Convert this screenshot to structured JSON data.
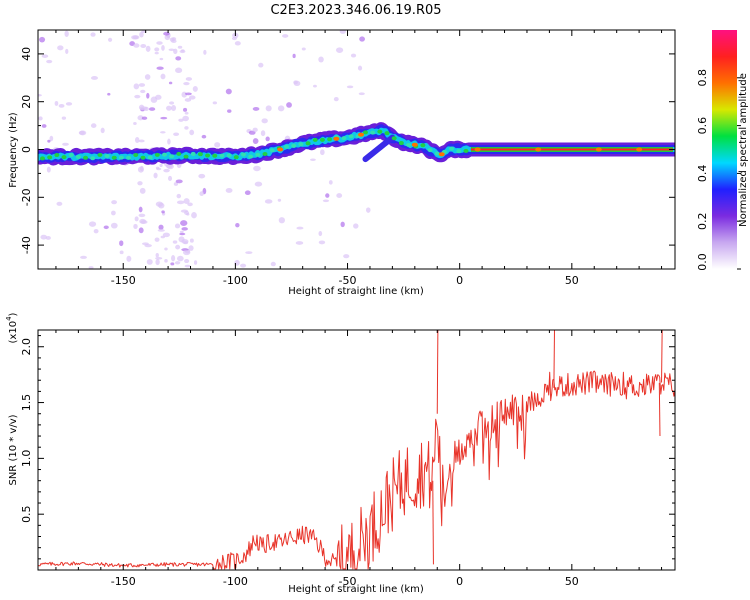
{
  "title": "C2E3.2023.346.06.19.R05",
  "chart_data": [
    {
      "type": "heatmap",
      "name": "spectrogram",
      "xlabel": "Height of straight line (km)",
      "ylabel": "Frequency (Hz)",
      "xlim": [
        -188,
        96
      ],
      "ylim": [
        -50,
        50
      ],
      "x_ticks": [
        -150,
        -100,
        -50,
        0,
        50
      ],
      "x_tick_labels": [
        "-150",
        "-100",
        "-50",
        "0",
        "50"
      ],
      "y_ticks": [
        -40,
        -20,
        0,
        20,
        40
      ],
      "y_tick_labels": [
        "-40",
        "-20",
        "0",
        "20",
        "40"
      ],
      "ridge": {
        "x": [
          -188,
          -150,
          -120,
          -100,
          -90,
          -80,
          -70,
          -60,
          -50,
          -40,
          -34,
          -30,
          -25,
          -20,
          -15,
          -12,
          -8,
          -4,
          0,
          5,
          10,
          20,
          40,
          60,
          80,
          96
        ],
        "freq": [
          -3,
          -3,
          -2.5,
          -3,
          -2,
          0,
          2.5,
          4,
          5,
          7,
          8,
          5,
          3,
          2,
          1,
          -1,
          -2,
          0,
          0,
          0,
          0,
          0,
          0,
          0,
          0,
          0
        ]
      },
      "branch": {
        "x": [
          -42,
          -38,
          -34,
          -30
        ],
        "freq": [
          -4,
          -1,
          2,
          5
        ]
      },
      "noise_band_x": [
        -145,
        -118
      ],
      "colorbar": {
        "label": "Normalized spectral amplitude",
        "range": [
          0,
          1
        ],
        "ticks": [
          0.0,
          0.2,
          0.4,
          0.6,
          0.8
        ],
        "tick_labels": [
          "0.0",
          "0.2",
          "0.4",
          "0.6",
          "0.8"
        ],
        "colors": [
          "#ffffff",
          "#c8a8f0",
          "#7b2be0",
          "#2020ff",
          "#00d8ff",
          "#00e040",
          "#d8e800",
          "#ff7000",
          "#ff2020",
          "#ff1080"
        ]
      }
    },
    {
      "type": "line",
      "name": "snr",
      "xlabel": "Height of straight line (km)",
      "ylabel": "SNR (10 * v/v)",
      "exponent_label": "(x10",
      "exponent_power": "4",
      "exponent_close": ")",
      "xlim": [
        -188,
        96
      ],
      "ylim": [
        0,
        2.15
      ],
      "x_ticks": [
        -150,
        -100,
        -50,
        0,
        50
      ],
      "x_tick_labels": [
        "-150",
        "-100",
        "-50",
        "0",
        "50"
      ],
      "y_ticks": [
        0.5,
        1.0,
        1.5,
        2.0
      ],
      "y_tick_labels": [
        "0.5",
        "1.0",
        "1.5",
        "2.0"
      ],
      "color": "#e8342a",
      "series": {
        "x": [
          -188,
          -170,
          -150,
          -130,
          -110,
          -100,
          -95,
          -91,
          -88,
          -84,
          -80,
          -76,
          -72,
          -68,
          -64,
          -60,
          -56,
          -52,
          -48,
          -44,
          -40,
          -36,
          -32,
          -28,
          -24,
          -20,
          -16,
          -12,
          -10,
          -8,
          -4,
          0,
          4,
          8,
          12,
          16,
          20,
          25,
          30,
          35,
          40,
          45,
          50,
          55,
          60,
          65,
          70,
          75,
          80,
          85,
          90,
          96
        ],
        "values": [
          0.05,
          0.06,
          0.04,
          0.05,
          0.05,
          0.08,
          0.15,
          0.28,
          0.2,
          0.26,
          0.24,
          0.28,
          0.3,
          0.32,
          0.26,
          0.12,
          0.06,
          0.08,
          0.15,
          0.25,
          0.35,
          0.48,
          0.62,
          0.72,
          0.82,
          0.85,
          0.9,
          0.8,
          1.4,
          0.6,
          0.95,
          1.05,
          1.2,
          1.25,
          1.3,
          1.35,
          1.4,
          1.45,
          1.5,
          1.55,
          1.62,
          1.65,
          1.66,
          1.67,
          1.68,
          1.65,
          1.68,
          1.66,
          1.64,
          1.66,
          1.68,
          1.65
        ]
      }
    }
  ]
}
